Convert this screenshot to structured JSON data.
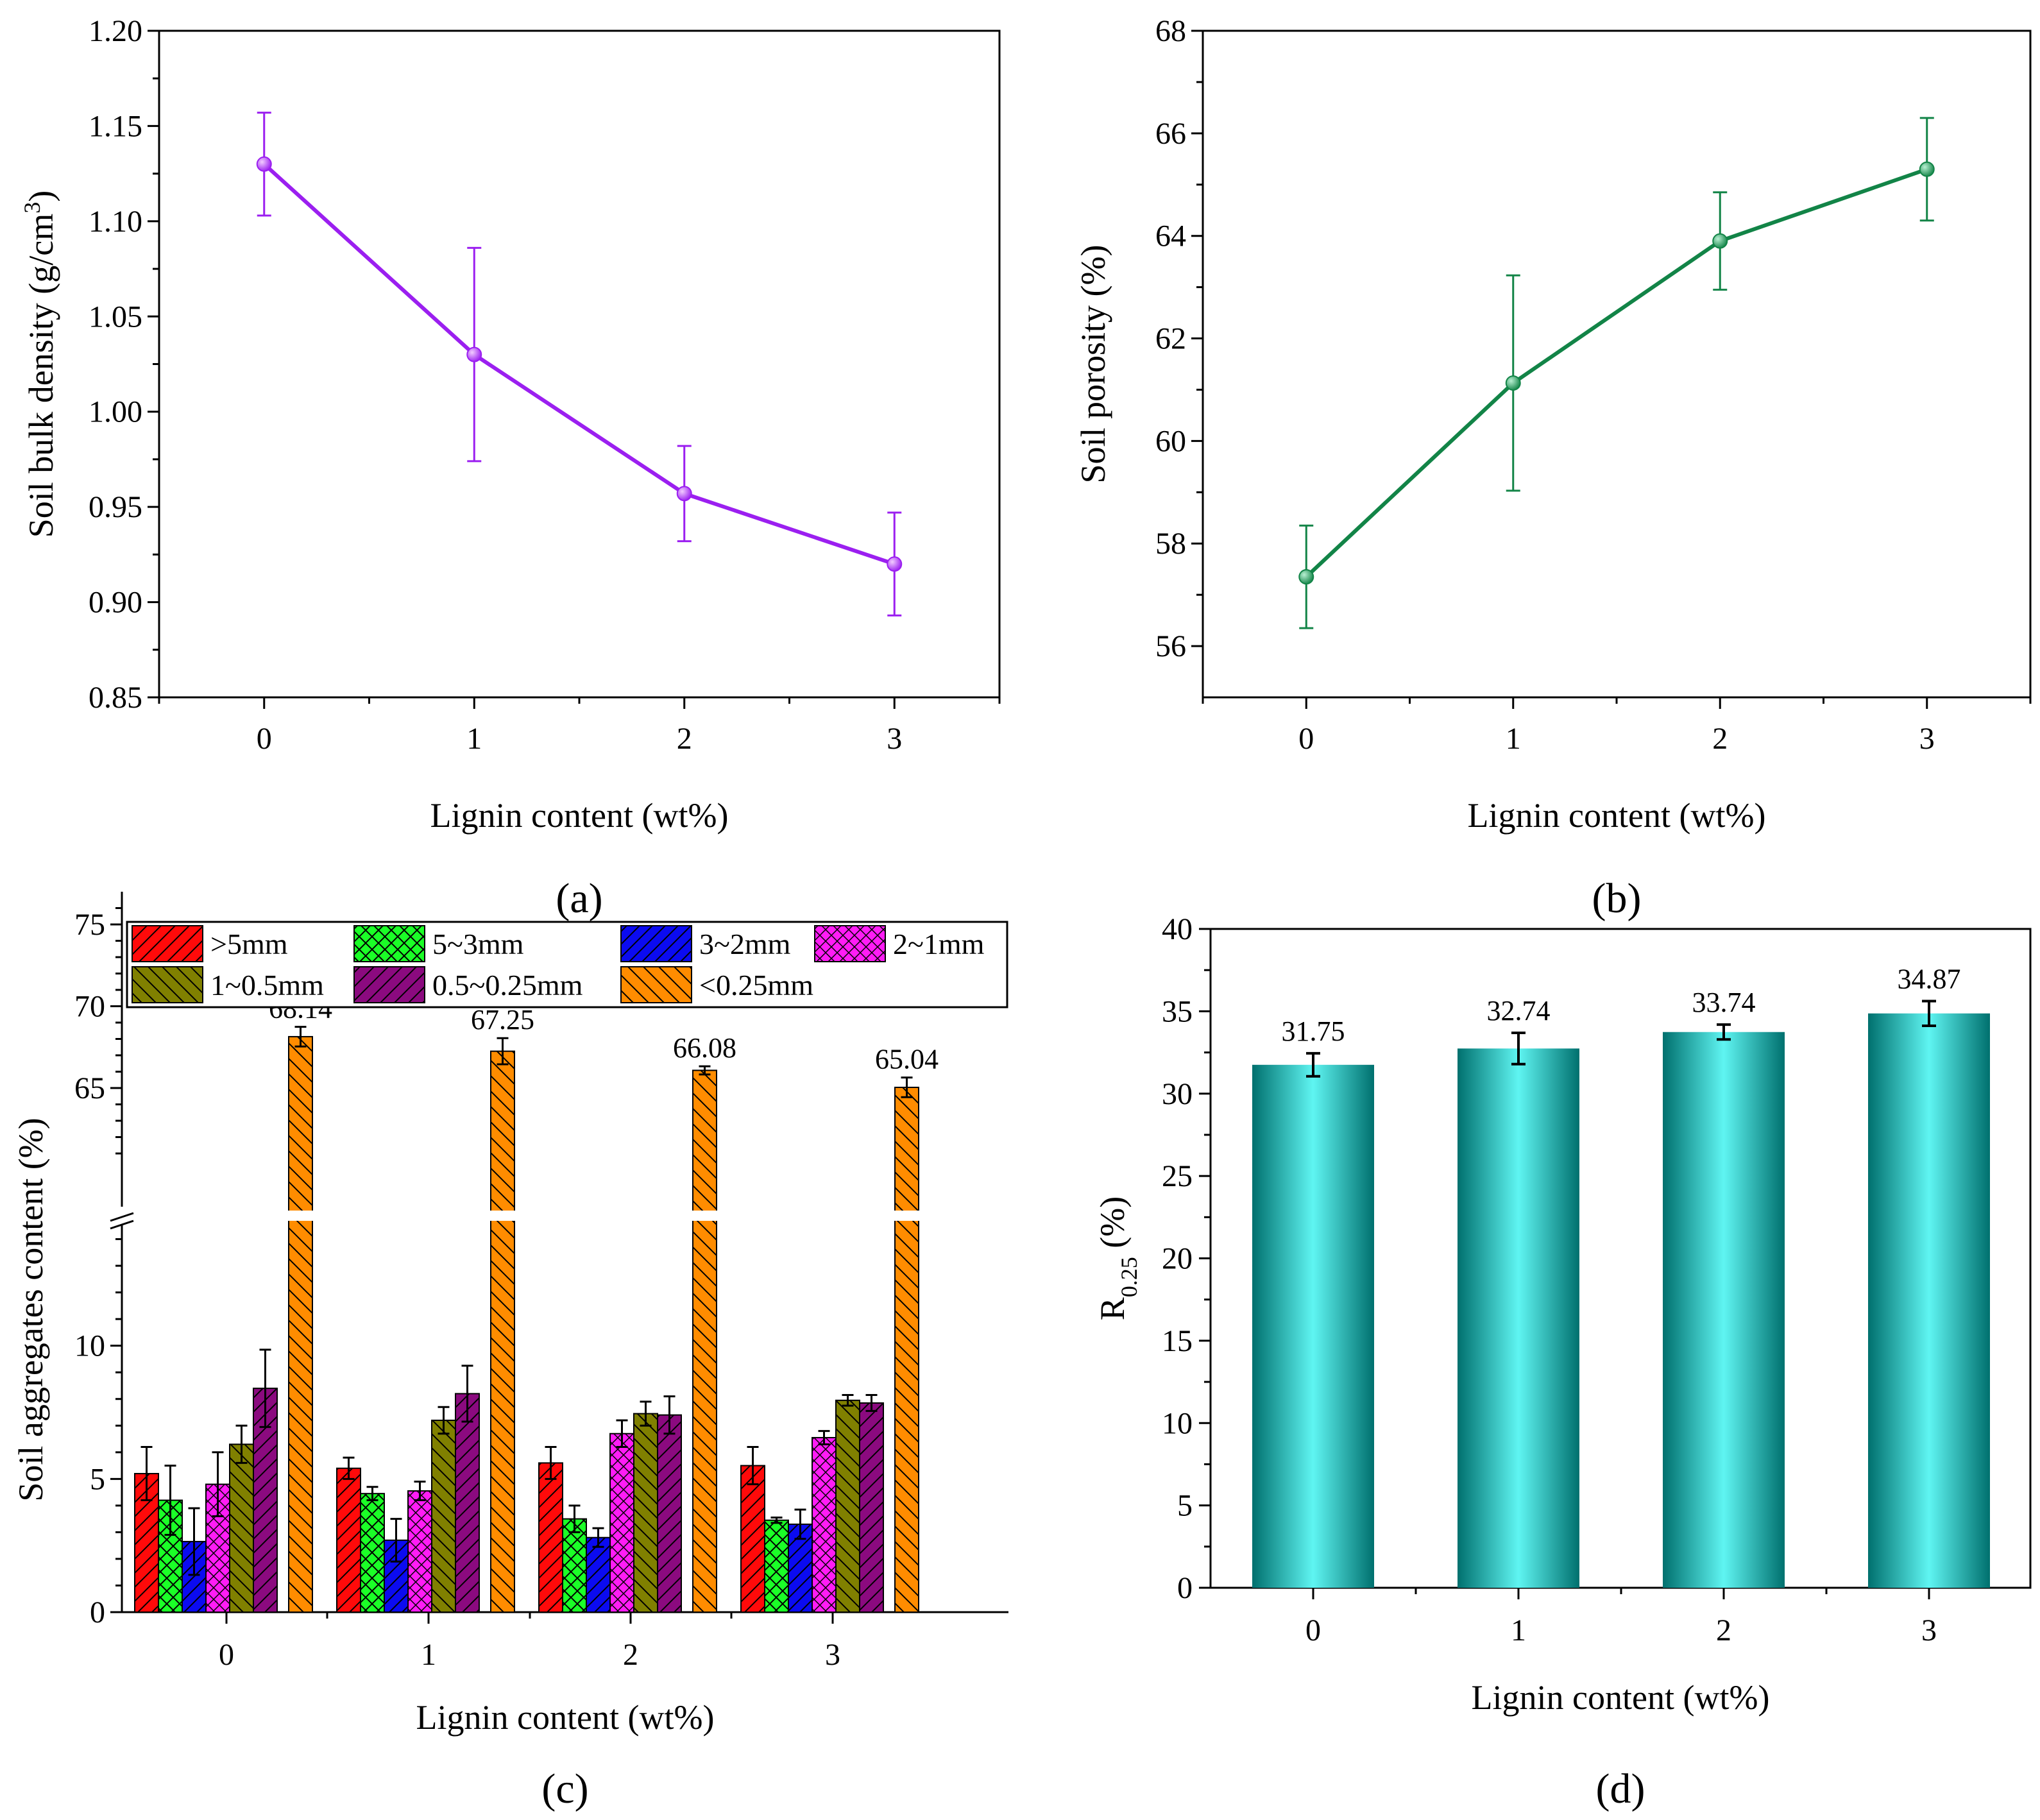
{
  "colors": {
    "purple": "#9b1ff0",
    "green": "#128447",
    "cyan_light": "#5ff5f2",
    "cyan_dark": "#00706e",
    "sizes": [
      "#ff0a0a",
      "#1bff27",
      "#0b0bf0",
      "#ff1cf5",
      "#808000",
      "#8b0a7f",
      "#ff8c00"
    ]
  },
  "chart_data": [
    {
      "panel": "(a)",
      "type": "line",
      "x": [
        0,
        1,
        2,
        3
      ],
      "values": [
        1.13,
        1.03,
        0.957,
        0.92
      ],
      "errors": [
        0.027,
        0.056,
        0.025,
        0.027
      ],
      "xlabel": "Lignin content (wt%)",
      "ylabel": "Soil bulk density (g/cm",
      "ylabel_sup": "3",
      "ylabel_end": ")",
      "ylim": [
        0.85,
        1.2
      ],
      "xlim": [
        -0.5,
        3.5
      ],
      "xticks": [
        "0",
        "1",
        "2",
        "3"
      ],
      "yticks": [
        "0.85",
        "0.90",
        "0.95",
        "1.00",
        "1.05",
        "1.10",
        "1.15",
        "1.20"
      ]
    },
    {
      "panel": "(b)",
      "type": "line",
      "x": [
        0,
        1,
        2,
        3
      ],
      "values": [
        57.35,
        61.13,
        63.9,
        65.3
      ],
      "errors": [
        1.0,
        2.1,
        0.95,
        1.0
      ],
      "xlabel": "Lignin content (wt%)",
      "ylabel": "Soil porosity (%)",
      "ylim": [
        55,
        68
      ],
      "xlim": [
        -0.5,
        3.5
      ],
      "xticks": [
        "0",
        "1",
        "2",
        "3"
      ],
      "yticks": [
        "56",
        "58",
        "60",
        "62",
        "64",
        "66",
        "68"
      ]
    },
    {
      "panel": "(c)",
      "type": "bar",
      "categories": [
        "0",
        "1",
        "2",
        "3"
      ],
      "series": [
        {
          "name": ">5mm",
          "values": [
            5.2,
            5.4,
            5.6,
            5.5
          ],
          "errors": [
            1.0,
            0.4,
            0.6,
            0.7
          ]
        },
        {
          "name": "5~3mm",
          "values": [
            4.2,
            4.45,
            3.5,
            3.45
          ],
          "errors": [
            1.3,
            0.25,
            0.5,
            0.1
          ]
        },
        {
          "name": "3~2mm",
          "values": [
            2.65,
            2.7,
            2.8,
            3.3
          ],
          "errors": [
            1.25,
            0.8,
            0.35,
            0.55
          ]
        },
        {
          "name": "2~1mm",
          "values": [
            4.8,
            4.55,
            6.7,
            6.55
          ],
          "errors": [
            1.2,
            0.35,
            0.5,
            0.25
          ]
        },
        {
          "name": "1~0.5mm",
          "values": [
            6.3,
            7.2,
            7.45,
            7.95
          ],
          "errors": [
            0.7,
            0.5,
            0.45,
            0.2
          ]
        },
        {
          "name": "0.5~0.25mm",
          "values": [
            8.4,
            8.2,
            7.4,
            7.85
          ],
          "errors": [
            1.45,
            1.05,
            0.7,
            0.3
          ]
        },
        {
          "name": "<0.25mm",
          "values": [
            68.14,
            67.25,
            66.08,
            65.04
          ],
          "errors": [
            0.6,
            0.8,
            0.25,
            0.6
          ]
        }
      ],
      "data_labels": [
        "68.14",
        "67.25",
        "66.08",
        "65.04"
      ],
      "xlabel": "Lignin content (wt%)",
      "ylabel": "Soil aggregates content (%)",
      "ylim_lower": [
        0,
        15
      ],
      "ylim_upper": [
        57,
        77
      ],
      "axis_break": true,
      "yticks_lower": [
        "0",
        "5",
        "10"
      ],
      "yticks_upper": [
        "65",
        "70",
        "75"
      ],
      "legend_position": "top"
    },
    {
      "panel": "(d)",
      "type": "bar",
      "categories": [
        "0",
        "1",
        "2",
        "3"
      ],
      "values": [
        31.75,
        32.74,
        33.74,
        34.87
      ],
      "errors": [
        0.7,
        0.95,
        0.45,
        0.75
      ],
      "data_labels": [
        "31.75",
        "32.74",
        "33.74",
        "34.87"
      ],
      "xlabel": "Lignin content (wt%)",
      "ylabel_main": "R",
      "ylabel_sub": "0.25",
      "ylabel_tail": " (%)",
      "ylim": [
        0,
        40
      ],
      "yticks": [
        "0",
        "5",
        "10",
        "15",
        "20",
        "25",
        "30",
        "35",
        "40"
      ]
    }
  ]
}
